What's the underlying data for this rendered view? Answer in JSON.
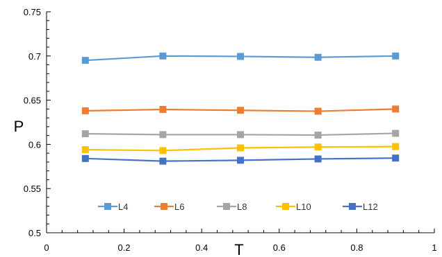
{
  "chart_data": {
    "type": "line",
    "xlabel": "T",
    "ylabel": "P",
    "xlim": [
      0,
      1
    ],
    "ylim": [
      0.5,
      0.75
    ],
    "x_ticks": [
      0,
      0.2,
      0.4,
      0.6,
      0.8,
      1
    ],
    "y_ticks": [
      0.5,
      0.55,
      0.6,
      0.65,
      0.7,
      0.75
    ],
    "x_tick_labels": [
      "0",
      "0.2",
      "0.4",
      "0.6",
      "0.8",
      "1"
    ],
    "y_tick_labels": [
      "0.5",
      "0.55",
      "0.6",
      "0.65",
      "0.7",
      "0.75"
    ],
    "grid": false,
    "legend_position": "bottom-inside",
    "x": [
      0.1,
      0.3,
      0.5,
      0.7,
      0.9
    ],
    "series": [
      {
        "name": "L4",
        "color": "#5B9BD5",
        "values": [
          0.695,
          0.7,
          0.6995,
          0.6985,
          0.7
        ]
      },
      {
        "name": "L6",
        "color": "#ED7D31",
        "values": [
          0.638,
          0.6395,
          0.6385,
          0.6375,
          0.64
        ]
      },
      {
        "name": "L8",
        "color": "#A5A5A5",
        "values": [
          0.612,
          0.611,
          0.611,
          0.6105,
          0.6125
        ]
      },
      {
        "name": "L10",
        "color": "#FFC000",
        "values": [
          0.594,
          0.593,
          0.596,
          0.597,
          0.5975
        ]
      },
      {
        "name": "L12",
        "color": "#4472C4",
        "values": [
          0.584,
          0.581,
          0.582,
          0.5835,
          0.5845
        ]
      }
    ]
  }
}
